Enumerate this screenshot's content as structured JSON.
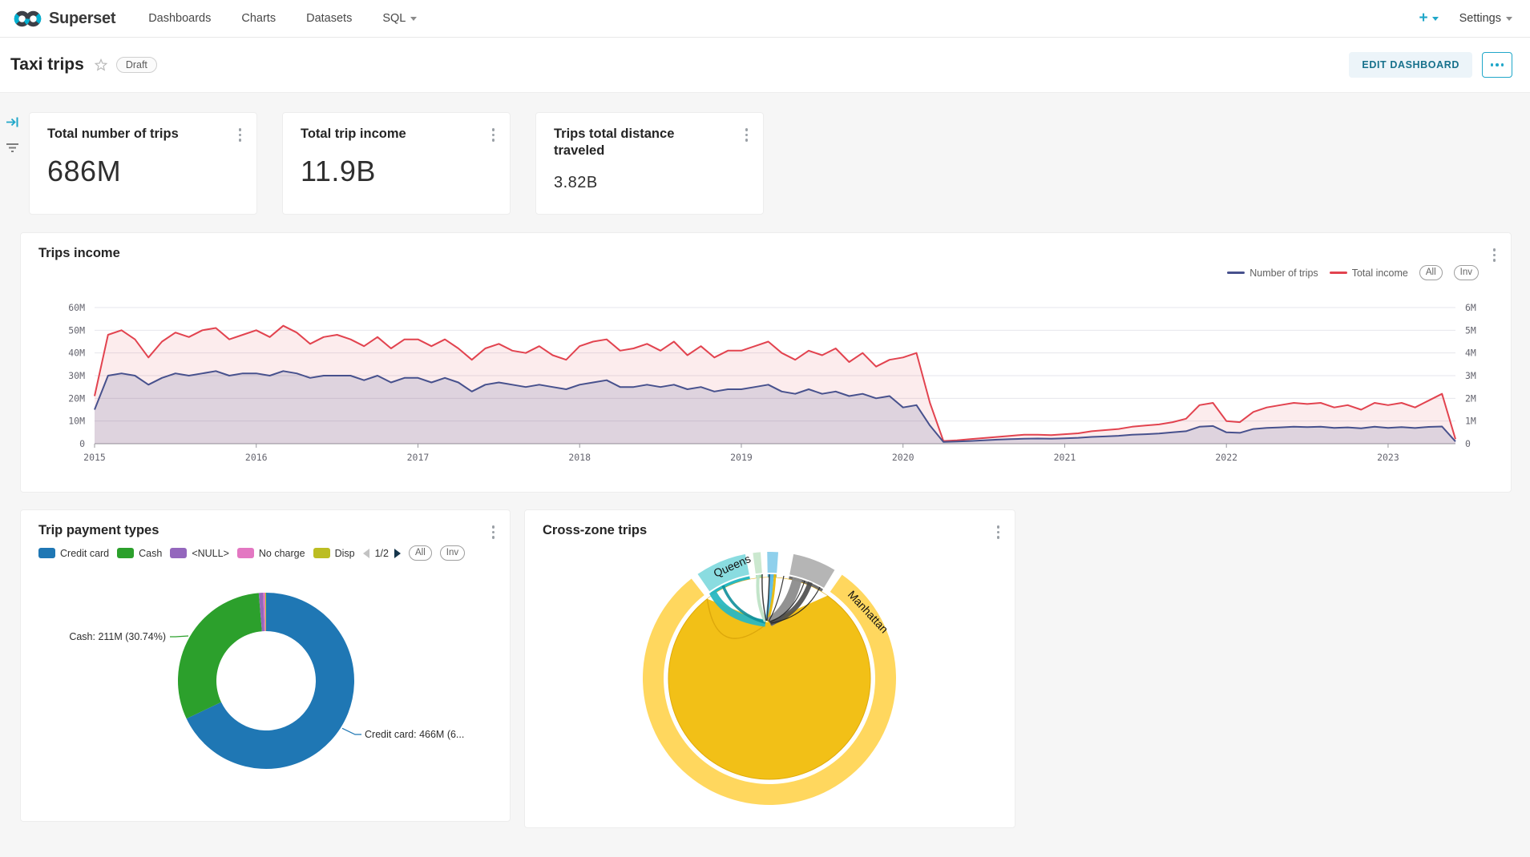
{
  "nav": {
    "brand": "Superset",
    "items": [
      {
        "label": "Dashboards",
        "has_caret": false
      },
      {
        "label": "Charts",
        "has_caret": false
      },
      {
        "label": "Datasets",
        "has_caret": false
      },
      {
        "label": "SQL",
        "has_caret": true
      }
    ],
    "plus_label": "+",
    "settings_label": "Settings"
  },
  "header": {
    "title": "Taxi trips",
    "status_badge": "Draft",
    "edit_button": "EDIT DASHBOARD"
  },
  "kpis": [
    {
      "title": "Total number of trips",
      "value": "686M"
    },
    {
      "title": "Total trip income",
      "value": "11.9B"
    },
    {
      "title": "Trips total distance traveled",
      "value": "3.82B"
    }
  ],
  "trips_income_panel": {
    "title": "Trips income",
    "legend": [
      {
        "label": "Number of trips",
        "color": "#47518d"
      },
      {
        "label": "Total income",
        "color": "#e2434f"
      }
    ],
    "pills": [
      "All",
      "Inv"
    ]
  },
  "payment_panel": {
    "title": "Trip payment types",
    "legend": [
      {
        "label": "Credit card",
        "color": "#1f77b4"
      },
      {
        "label": "Cash",
        "color": "#2ca02c"
      },
      {
        "label": "<NULL>",
        "color": "#9467bd"
      },
      {
        "label": "No charge",
        "color": "#e377c2"
      },
      {
        "label": "Disp",
        "color": "#bcbd22"
      }
    ],
    "page_indicator": "1/2",
    "pills": [
      "All",
      "Inv"
    ]
  },
  "crosszone_panel": {
    "title": "Cross-zone trips"
  },
  "chart_data": [
    {
      "type": "area",
      "title": "Trips income",
      "x_start": "2015-01",
      "x_step": "month",
      "x_tick_labels": [
        "2015",
        "2016",
        "2017",
        "2018",
        "2019",
        "2020",
        "2021",
        "2022",
        "2023"
      ],
      "y_left": {
        "ticks": [
          "0",
          "10M",
          "20M",
          "30M",
          "40M",
          "50M",
          "60M"
        ],
        "max": 60
      },
      "y_right": {
        "ticks": [
          "0",
          "1M",
          "2M",
          "3M",
          "4M",
          "5M",
          "6M"
        ],
        "max": 6
      },
      "grid": true,
      "legend_position": "top-right",
      "series": [
        {
          "name": "Total income",
          "axis": "left",
          "color": "#e2434f",
          "area_opacity": 0.1,
          "values": [
            21,
            48,
            50,
            46,
            38,
            45,
            49,
            47,
            50,
            51,
            46,
            48,
            50,
            47,
            52,
            49,
            44,
            47,
            48,
            46,
            43,
            47,
            42,
            46,
            46,
            43,
            46,
            42,
            37,
            42,
            44,
            41,
            40,
            43,
            39,
            37,
            43,
            45,
            46,
            41,
            42,
            44,
            41,
            45,
            39,
            43,
            38,
            41,
            41,
            43,
            45,
            40,
            37,
            41,
            39,
            42,
            36,
            40,
            34,
            37,
            38,
            40,
            18,
            1.2,
            1.5,
            2,
            2.5,
            3,
            3.5,
            4,
            4,
            3.8,
            4.2,
            4.6,
            5.5,
            6,
            6.5,
            7.5,
            8,
            8.5,
            9.5,
            11,
            17,
            18,
            10,
            9.5,
            14,
            16,
            17,
            18,
            17.5,
            18,
            16,
            17,
            15,
            18,
            17,
            18,
            16,
            19,
            22,
            2
          ]
        },
        {
          "name": "Number of trips",
          "axis": "right",
          "color": "#47518d",
          "area_opacity": 0.16,
          "values": [
            1.5,
            3.0,
            3.1,
            3.0,
            2.6,
            2.9,
            3.1,
            3.0,
            3.1,
            3.2,
            3.0,
            3.1,
            3.1,
            3.0,
            3.2,
            3.1,
            2.9,
            3.0,
            3.0,
            3.0,
            2.8,
            3.0,
            2.7,
            2.9,
            2.9,
            2.7,
            2.9,
            2.7,
            2.3,
            2.6,
            2.7,
            2.6,
            2.5,
            2.6,
            2.5,
            2.4,
            2.6,
            2.7,
            2.8,
            2.5,
            2.5,
            2.6,
            2.5,
            2.6,
            2.4,
            2.5,
            2.3,
            2.4,
            2.4,
            2.5,
            2.6,
            2.3,
            2.2,
            2.4,
            2.2,
            2.3,
            2.1,
            2.2,
            2.0,
            2.1,
            1.6,
            1.7,
            0.8,
            0.08,
            0.1,
            0.12,
            0.15,
            0.18,
            0.2,
            0.22,
            0.23,
            0.22,
            0.24,
            0.26,
            0.3,
            0.32,
            0.35,
            0.4,
            0.42,
            0.45,
            0.5,
            0.55,
            0.75,
            0.78,
            0.5,
            0.48,
            0.65,
            0.7,
            0.72,
            0.75,
            0.73,
            0.75,
            0.7,
            0.72,
            0.68,
            0.75,
            0.7,
            0.73,
            0.69,
            0.74,
            0.76,
            0.1
          ]
        }
      ]
    },
    {
      "type": "pie",
      "title": "Trip payment types",
      "donut": true,
      "slices": [
        {
          "label": "Credit card",
          "value": "466M",
          "pct": 67.93,
          "color": "#1f77b4"
        },
        {
          "label": "Cash",
          "value": "211M",
          "pct": 30.74,
          "color": "#2ca02c"
        },
        {
          "label": "<NULL>",
          "pct": 0.8,
          "color": "#9467bd"
        },
        {
          "label": "No charge",
          "pct": 0.38,
          "color": "#e377c2"
        },
        {
          "label": "Dispute",
          "pct": 0.15,
          "color": "#bcbd22"
        }
      ],
      "visible_labels": {
        "cash": "Cash: 211M (30.74%)",
        "credit": "Credit card: 466M (6..."
      }
    },
    {
      "type": "chord",
      "title": "Cross-zone trips",
      "labels": [
        "Queens",
        "Manhattan"
      ],
      "segments": [
        {
          "label": "Manhattan",
          "start": 35,
          "end": 322,
          "color_outer": "#FFD75E",
          "color_inner": "#F2C017"
        },
        {
          "label": "Queens",
          "start": 325.5,
          "end": 349,
          "color_outer": "#8ADCE0",
          "color_inner": "#29B8C2"
        },
        {
          "label": "",
          "start": 352.5,
          "end": 356,
          "color_outer": "#CBE8CF",
          "color_inner": "#9ED8AC"
        },
        {
          "label": "",
          "start": 359,
          "end": 364,
          "color_outer": "#8FD0EC",
          "color_inner": "#4FB3DE"
        },
        {
          "label": "",
          "start": 371,
          "end": 391,
          "color_outer": "#B5B5B5",
          "color_inner": "#6E6E6E"
        }
      ]
    }
  ]
}
